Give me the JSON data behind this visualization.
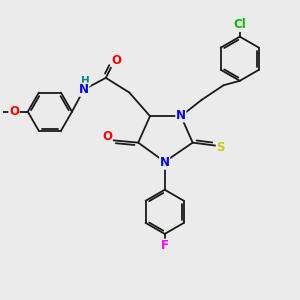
{
  "bg_color": "#ebebeb",
  "line_color": "#1a1a1a",
  "atom_colors": {
    "N": "#0000ff",
    "O": "#ff0000",
    "S": "#cccc00",
    "Cl": "#00bb00",
    "F": "#ff00ff",
    "H": "#008888"
  },
  "lw": 1.3,
  "fs": 8.5
}
